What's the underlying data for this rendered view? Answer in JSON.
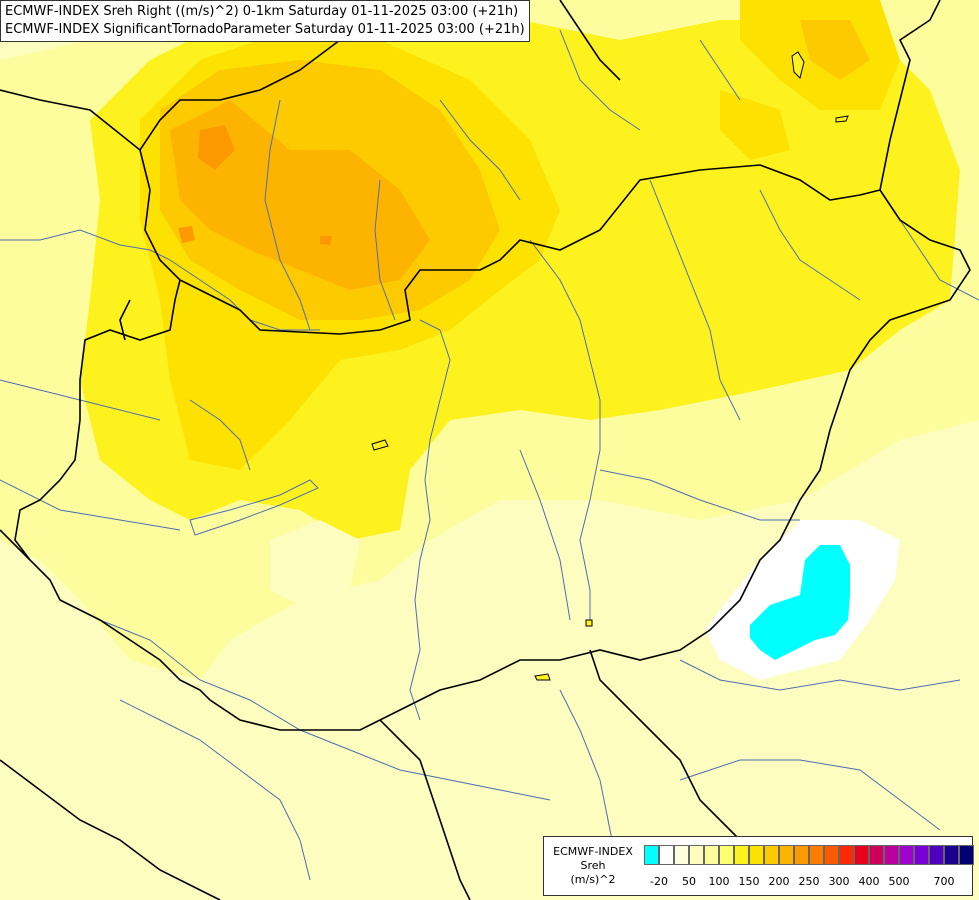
{
  "title": {
    "line1": "ECMWF-INDEX Sreh Right ((m/s)^2) 0-1km Saturday 01-11-2025 03:00 (+21h)",
    "line2": "ECMWF-INDEX SignificantTornadoParameter Saturday 01-11-2025 03:00 (+21h)"
  },
  "legend": {
    "line1": "ECMWF-INDEX",
    "line2": "Sreh",
    "line3": "(m/s)^2",
    "colors": [
      "#00ffff",
      "#ffffff",
      "#ffffe0",
      "#fdfdc0",
      "#fdfd9e",
      "#fdfd70",
      "#fdf21e",
      "#fde100",
      "#fdca00",
      "#fdb400",
      "#fd9900",
      "#fd7d00",
      "#fd5a00",
      "#fd2a00",
      "#e8001e",
      "#cf0059",
      "#bb00a0",
      "#a000d0",
      "#7a00d8",
      "#4d00c0",
      "#1a0090",
      "#000070"
    ],
    "ticks": [
      "-20",
      "50",
      "100",
      "150",
      "200",
      "250",
      "300",
      "400",
      "500",
      "700"
    ],
    "tick_index": [
      0,
      2,
      4,
      6,
      8,
      10,
      12,
      14,
      16,
      19
    ]
  },
  "colors": {
    "pale": "#fdfdc0",
    "light_yellow": "#fdfd9e",
    "yellow": "#fdf21e",
    "gold": "#fde100",
    "amber": "#fdca00",
    "orange": "#fdb400",
    "dark_orange": "#fd9900",
    "white": "#ffffff",
    "cyan": "#00ffff",
    "border": "#000000",
    "river": "#4d6eb3"
  }
}
